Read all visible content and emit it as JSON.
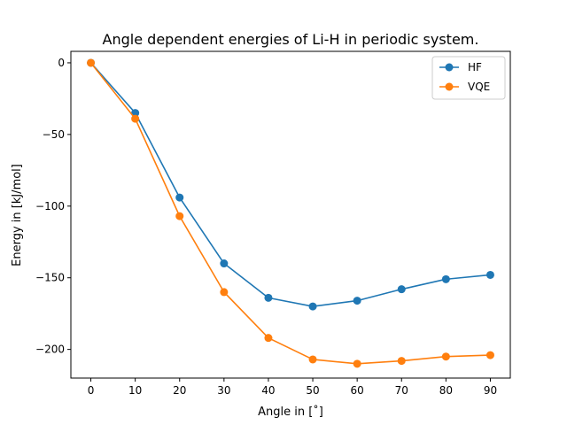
{
  "chart_data": {
    "type": "line",
    "title": "Angle dependent energies of Li-H in periodic system.",
    "xlabel": "Angle in [˚]",
    "ylabel": "Energy in [kJ/mol]",
    "xlim": [
      -4.5,
      94.5
    ],
    "ylim": [
      -220,
      8
    ],
    "xticks": [
      0,
      10,
      20,
      30,
      40,
      50,
      60,
      70,
      80,
      90
    ],
    "xtick_labels": [
      "0",
      "10",
      "20",
      "30",
      "40",
      "50",
      "60",
      "70",
      "80",
      "90"
    ],
    "yticks": [
      0,
      -50,
      -100,
      -150,
      -200
    ],
    "ytick_labels": [
      "0",
      "−50",
      "−100",
      "−150",
      "−200"
    ],
    "grid": false,
    "legend_position": "top-right",
    "x": [
      0,
      10,
      20,
      30,
      40,
      50,
      60,
      70,
      80,
      90
    ],
    "series": [
      {
        "name": "HF",
        "color": "#1f77b4",
        "marker": "circle",
        "values": [
          0,
          -35,
          -94,
          -140,
          -164,
          -170,
          -166,
          -158,
          -151,
          -148
        ]
      },
      {
        "name": "VQE",
        "color": "#ff7f0e",
        "marker": "circle",
        "values": [
          0,
          -39,
          -107,
          -160,
          -192,
          -207,
          -210,
          -208,
          -205,
          -204
        ]
      }
    ]
  }
}
